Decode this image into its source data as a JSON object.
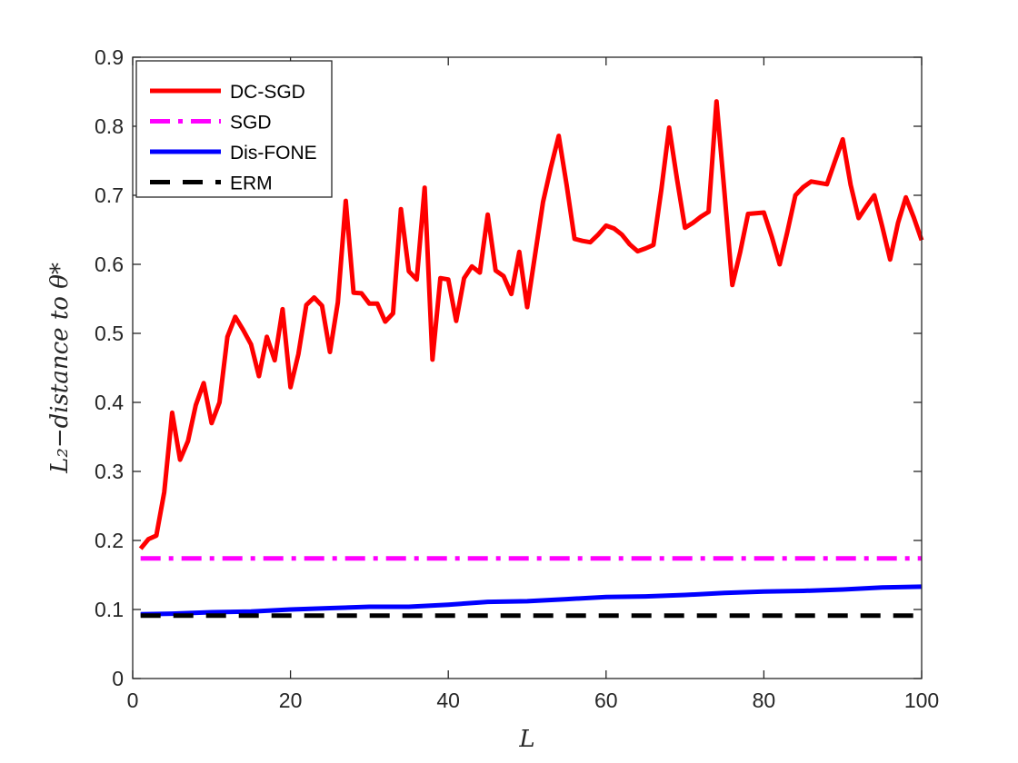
{
  "chart_data": {
    "type": "line",
    "xlabel": "L",
    "ylabel": "L₂−distance to θ*",
    "xlim": [
      0,
      100
    ],
    "ylim": [
      0,
      0.9
    ],
    "xticks": [
      "0",
      "20",
      "40",
      "60",
      "80",
      "100"
    ],
    "yticks": [
      "0",
      "0.1",
      "0.2",
      "0.3",
      "0.4",
      "0.5",
      "0.6",
      "0.7",
      "0.8",
      "0.9"
    ],
    "grid": false,
    "legend_position": "top-left",
    "series": [
      {
        "name": "DC-SGD",
        "color": "#ff0000",
        "style": "solid",
        "x": [
          1,
          2,
          3,
          4,
          5,
          6,
          7,
          8,
          9,
          10,
          11,
          12,
          13,
          14,
          15,
          16,
          17,
          18,
          19,
          20,
          21,
          22,
          23,
          24,
          25,
          26,
          27,
          28,
          29,
          30,
          31,
          32,
          33,
          34,
          35,
          36,
          37,
          38,
          39,
          40,
          41,
          42,
          43,
          44,
          45,
          46,
          47,
          48,
          49,
          50,
          51,
          52,
          53,
          54,
          55,
          56,
          57,
          58,
          59,
          60,
          61,
          62,
          63,
          64,
          65,
          66,
          67,
          68,
          69,
          70,
          71,
          72,
          73,
          74,
          75,
          76,
          77,
          78,
          79,
          80,
          81,
          82,
          83,
          84,
          85,
          86,
          87,
          88,
          89,
          90,
          91,
          92,
          93,
          94,
          95,
          96,
          97,
          98,
          99,
          100
        ],
        "y": [
          0.188,
          0.202,
          0.207,
          0.27,
          0.385,
          0.317,
          0.344,
          0.396,
          0.428,
          0.37,
          0.4,
          0.495,
          0.524,
          0.505,
          0.484,
          0.438,
          0.495,
          0.461,
          0.535,
          0.422,
          0.47,
          0.541,
          0.552,
          0.54,
          0.473,
          0.545,
          0.692,
          0.559,
          0.558,
          0.543,
          0.543,
          0.517,
          0.529,
          0.68,
          0.59,
          0.578,
          0.711,
          0.462,
          0.58,
          0.578,
          0.518,
          0.58,
          0.597,
          0.588,
          0.672,
          0.591,
          0.583,
          0.557,
          0.618,
          0.538,
          0.614,
          0.69,
          0.74,
          0.786,
          0.715,
          0.637,
          0.634,
          0.632,
          0.643,
          0.656,
          0.652,
          0.643,
          0.629,
          0.619,
          0.623,
          0.628,
          0.708,
          0.798,
          0.723,
          0.653,
          0.66,
          0.669,
          0.676,
          0.836,
          0.705,
          0.57,
          0.618,
          0.673,
          0.674,
          0.675,
          0.64,
          0.6,
          0.648,
          0.7,
          0.712,
          0.72,
          0.718,
          0.716,
          0.749,
          0.781,
          0.715,
          0.667,
          0.684,
          0.7,
          0.655,
          0.607,
          0.66,
          0.697,
          0.668,
          0.635
        ]
      },
      {
        "name": "SGD",
        "color": "#ff00ff",
        "style": "dashdot",
        "x": [
          1,
          100
        ],
        "y": [
          0.174,
          0.174
        ]
      },
      {
        "name": "Dis-FONE",
        "color": "#0000ff",
        "style": "solid",
        "x": [
          1,
          5,
          10,
          15,
          20,
          25,
          30,
          35,
          40,
          45,
          50,
          55,
          60,
          65,
          70,
          75,
          80,
          85,
          90,
          95,
          100
        ],
        "y": [
          0.093,
          0.094,
          0.096,
          0.097,
          0.1,
          0.102,
          0.104,
          0.104,
          0.107,
          0.111,
          0.112,
          0.115,
          0.118,
          0.119,
          0.121,
          0.124,
          0.126,
          0.127,
          0.129,
          0.132,
          0.133
        ]
      },
      {
        "name": "ERM",
        "color": "#000000",
        "style": "dashed",
        "x": [
          1,
          100
        ],
        "y": [
          0.091,
          0.091
        ]
      }
    ]
  }
}
